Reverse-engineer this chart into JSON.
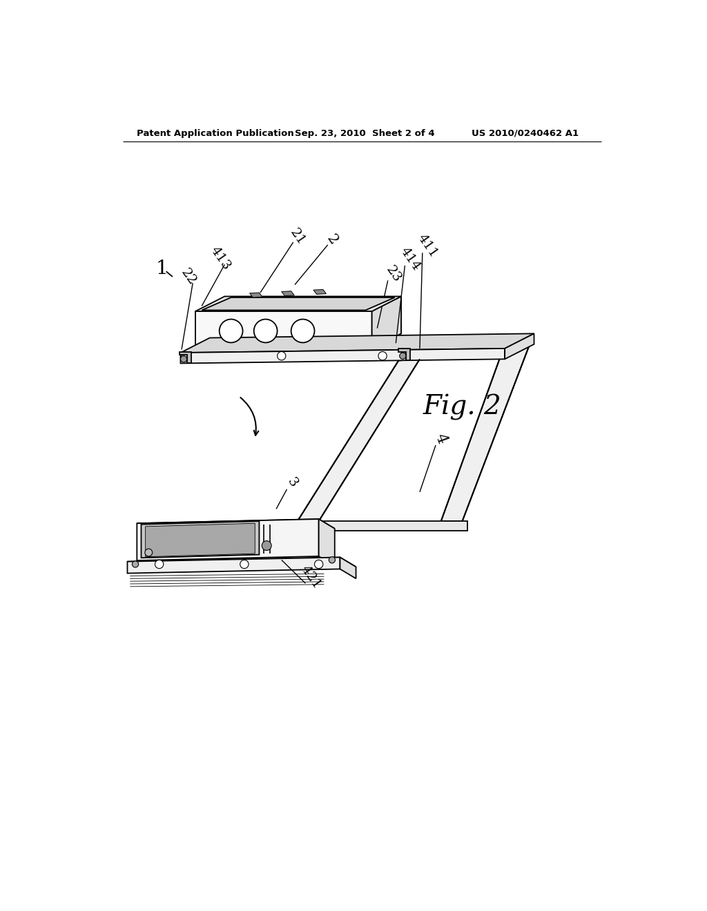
{
  "background_color": "#ffffff",
  "header_left": "Patent Application Publication",
  "header_center": "Sep. 23, 2010  Sheet 2 of 4",
  "header_right": "US 2010/0240462 A1",
  "fig_label": "Fig. 2",
  "line_color": "#000000",
  "line_width": 1.3
}
